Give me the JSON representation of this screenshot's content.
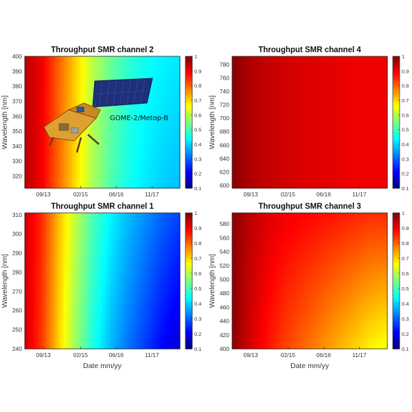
{
  "chart_data": [
    {
      "type": "heatmap",
      "title": "Throughput SMR channel 2",
      "ylabel": "Wavelength [nm]",
      "xlabel": "",
      "x_ticks": [
        "09/13",
        "02/15",
        "06/16",
        "11/17"
      ],
      "y_ticks": [
        320,
        330,
        340,
        350,
        360,
        370,
        380,
        390,
        400
      ],
      "ylim": [
        312,
        400
      ],
      "colorbar_ticks": [
        0.1,
        0.2,
        0.3,
        0.4,
        0.5,
        0.6,
        0.7,
        0.8,
        0.9,
        1
      ],
      "colorbar_range": [
        0.1,
        1
      ],
      "time_profile": [
        0.95,
        0.9,
        0.8,
        0.7,
        0.6,
        0.53,
        0.48,
        0.45,
        0.43,
        0.42
      ],
      "wavelength_effect": 0.04,
      "annotation": "GOME-2/Metop-B"
    },
    {
      "type": "heatmap",
      "title": "Throughput SMR channel 4",
      "ylabel": "Wavelength [nm]",
      "xlabel": "",
      "x_ticks": [
        "09/13",
        "02/15",
        "06/16",
        "11/17"
      ],
      "y_ticks": [
        600,
        620,
        640,
        660,
        680,
        700,
        720,
        740,
        760,
        780
      ],
      "ylim": [
        596,
        792
      ],
      "colorbar_ticks": [
        0.1,
        0.2,
        0.3,
        0.4,
        0.5,
        0.6,
        0.7,
        0.8,
        0.9,
        1
      ],
      "colorbar_range": [
        0.1,
        1
      ],
      "time_profile": [
        0.99,
        0.96,
        0.94,
        0.93,
        0.92,
        0.915,
        0.91,
        0.9,
        0.9,
        0.9
      ],
      "wavelength_effect": 0.0
    },
    {
      "type": "heatmap",
      "title": "Throughput SMR channel 1",
      "ylabel": "Wavelength [nm]",
      "xlabel": "Date mm/yy",
      "x_ticks": [
        "09/13",
        "02/15",
        "06/16",
        "11/17"
      ],
      "y_ticks": [
        240,
        250,
        260,
        270,
        280,
        290,
        300,
        310
      ],
      "ylim": [
        240,
        311
      ],
      "colorbar_ticks": [
        0.1,
        0.2,
        0.3,
        0.4,
        0.5,
        0.6,
        0.7,
        0.8,
        0.9,
        1
      ],
      "colorbar_range": [
        0.1,
        1
      ],
      "time_profile": [
        0.93,
        0.85,
        0.72,
        0.6,
        0.5,
        0.43,
        0.38,
        0.34,
        0.3,
        0.27
      ],
      "wavelength_effect": 0.1
    },
    {
      "type": "heatmap",
      "title": "Throughput SMR channel 3",
      "ylabel": "Wavelength [nm]",
      "xlabel": "Date mm/yy",
      "x_ticks": [
        "09/13",
        "02/15",
        "06/16",
        "11/17"
      ],
      "y_ticks": [
        400,
        420,
        440,
        460,
        480,
        500,
        520,
        540,
        560,
        580
      ],
      "ylim": [
        400,
        596
      ],
      "colorbar_ticks": [
        0.1,
        0.2,
        0.3,
        0.4,
        0.5,
        0.6,
        0.7,
        0.8,
        0.9,
        1
      ],
      "colorbar_range": [
        0.1,
        1
      ],
      "time_profile": [
        0.99,
        0.95,
        0.92,
        0.9,
        0.89,
        0.88,
        0.87,
        0.86,
        0.85,
        0.85
      ],
      "wavelength_effect": 0.2
    }
  ]
}
